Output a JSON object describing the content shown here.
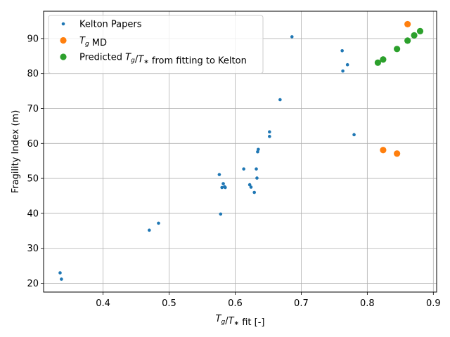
{
  "chart_data": {
    "type": "scatter",
    "xlabel": "T_g/T_* fit [-]",
    "ylabel": "Fragility Index (m)",
    "xlim": [
      0.31,
      0.905
    ],
    "ylim": [
      17.5,
      97.8
    ],
    "xticks": [
      0.4,
      0.5,
      0.6,
      0.7,
      0.8,
      0.9
    ],
    "yticks": [
      20,
      30,
      40,
      50,
      60,
      70,
      80,
      90
    ],
    "grid": true,
    "legend_position": "top-left",
    "series": [
      {
        "name": "Kelton Papers",
        "color": "#1f77b4",
        "marker_size": "small",
        "x": [
          0.335,
          0.337,
          0.47,
          0.484,
          0.576,
          0.578,
          0.58,
          0.582,
          0.584,
          0.585,
          0.613,
          0.622,
          0.624,
          0.629,
          0.632,
          0.633,
          0.634,
          0.635,
          0.652,
          0.652,
          0.668,
          0.686,
          0.762,
          0.763,
          0.77,
          0.78
        ],
        "y": [
          23.0,
          21.2,
          35.2,
          37.2,
          51.1,
          39.8,
          47.4,
          48.5,
          47.6,
          47.4,
          52.7,
          48.2,
          47.5,
          46.0,
          52.7,
          50.1,
          57.6,
          58.3,
          63.3,
          62.0,
          72.5,
          90.5,
          86.5,
          80.7,
          82.5,
          62.5
        ]
      },
      {
        "name": "T_g MD",
        "color": "#ff7f0e",
        "marker_size": "large",
        "x": [
          0.861,
          0.824,
          0.845
        ],
        "y": [
          94.1,
          58.1,
          57.1
        ]
      },
      {
        "name": "Predicted T_g/T_* from fitting to Kelton",
        "color": "#2ca02c",
        "marker_size": "large",
        "x": [
          0.816,
          0.824,
          0.845,
          0.861,
          0.871,
          0.88
        ],
        "y": [
          83.1,
          84.0,
          87.0,
          89.4,
          90.9,
          92.1
        ]
      }
    ]
  }
}
